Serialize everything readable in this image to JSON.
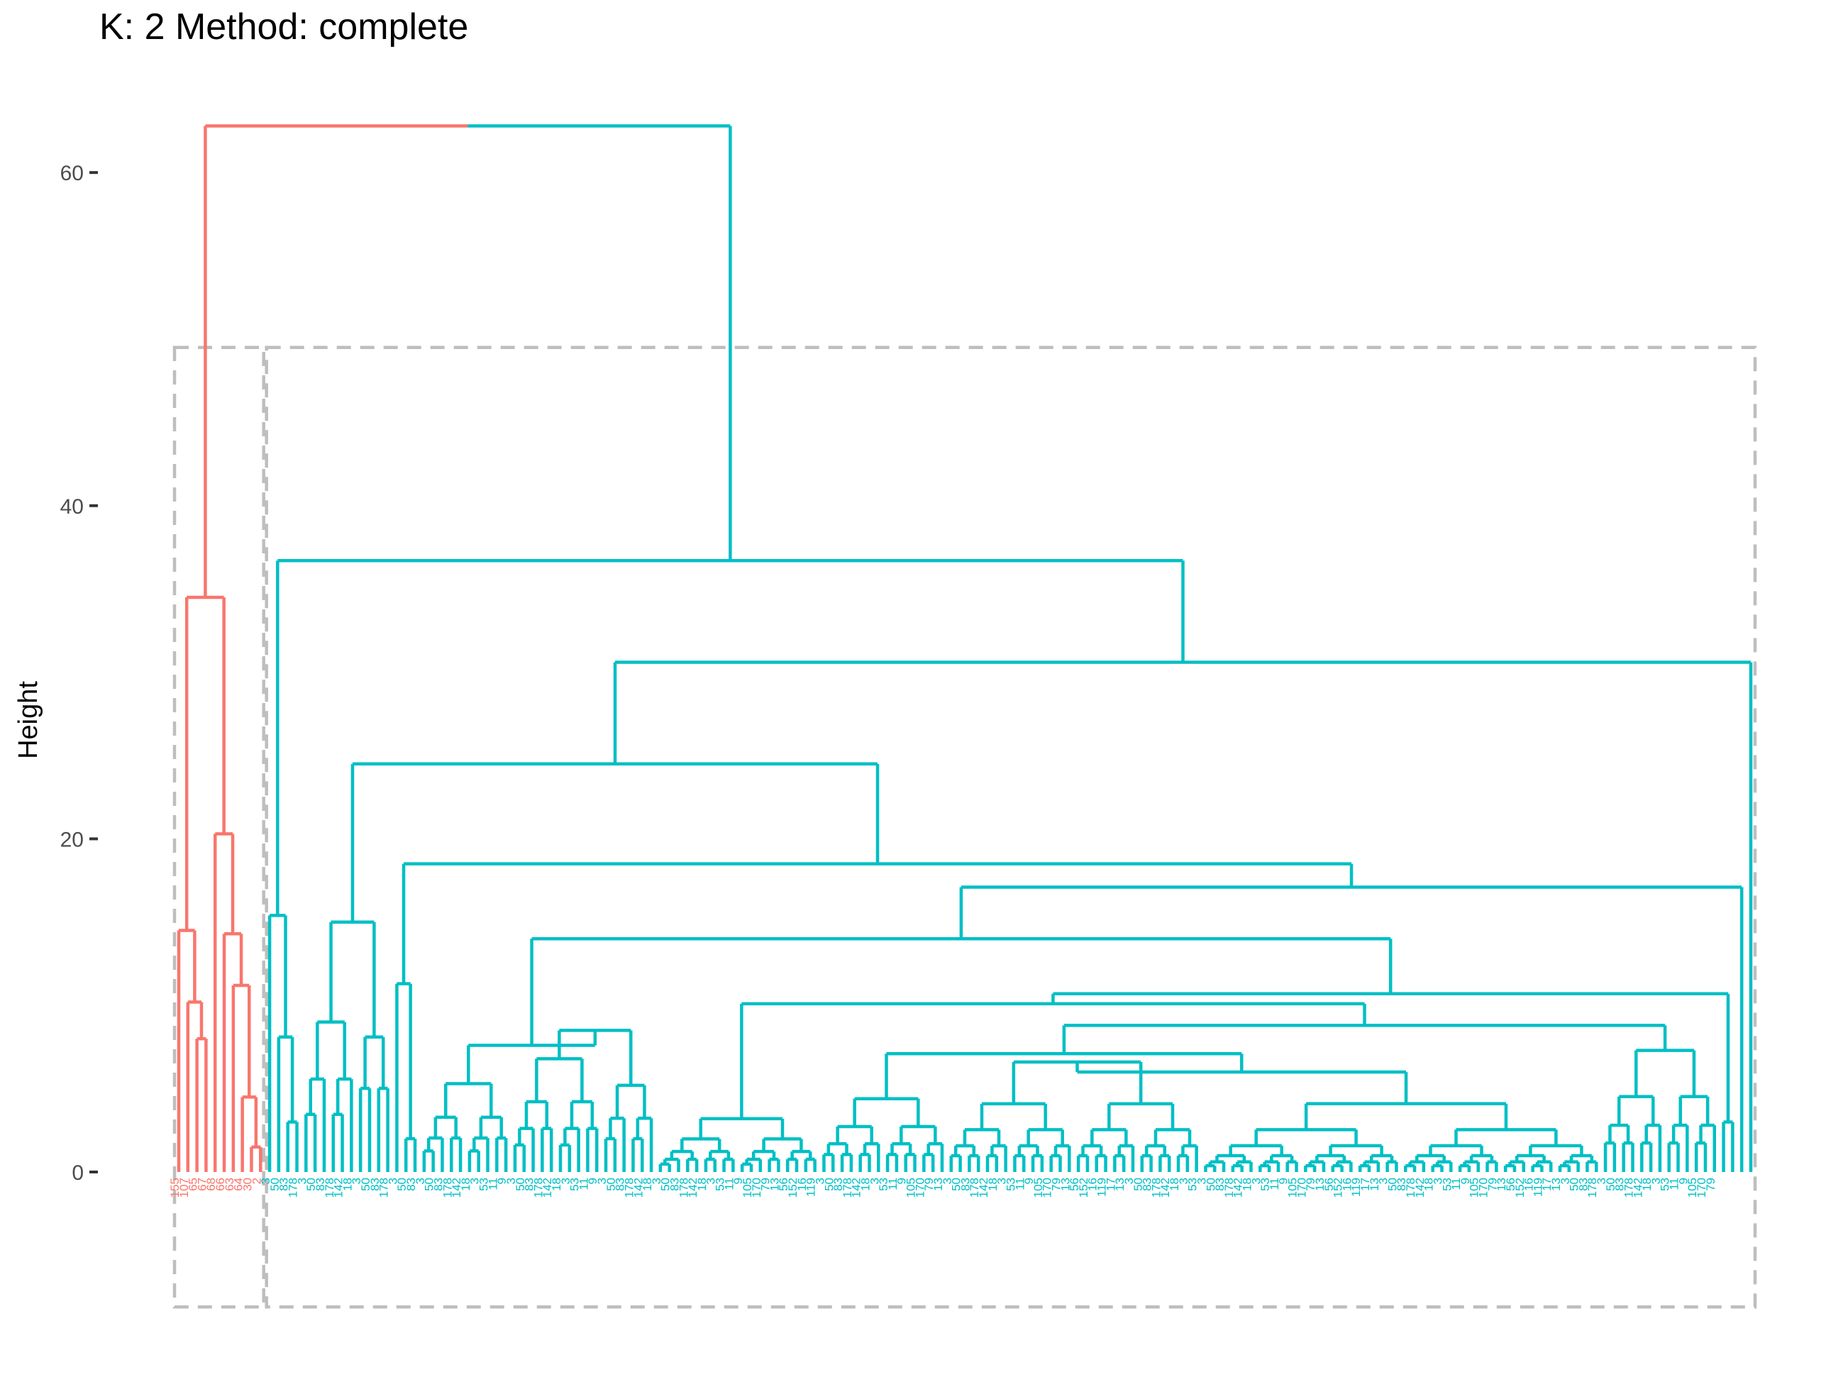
{
  "chart_data": {
    "type": "dendrogram",
    "title": "K: 2  Method: complete",
    "ylabel": "Height",
    "yticks": [
      0,
      20,
      40,
      60
    ],
    "ylim": [
      -8.5,
      64
    ],
    "colors": {
      "cluster1": "#F8766D",
      "cluster2": "#00BFC4",
      "rect": "#BEBEBE"
    },
    "k": 2,
    "cluster1": {
      "leaves": [
        "155",
        "107",
        "65",
        "67",
        "68",
        "66",
        "63",
        "64",
        "30",
        "2"
      ],
      "merge_heights": [
        14.5,
        10.2,
        8,
        34.5,
        20.3,
        14.3,
        11.2,
        62.8
      ]
    },
    "cluster2": {
      "top_merge_height": 62.8,
      "major_merge_heights": [
        36.7,
        30.6,
        24.5,
        18.5,
        17.1,
        14,
        11.3,
        10.7,
        10.1,
        8.8,
        7.6,
        15.4,
        15,
        9,
        8.1,
        7.5,
        6.8
      ]
    }
  }
}
